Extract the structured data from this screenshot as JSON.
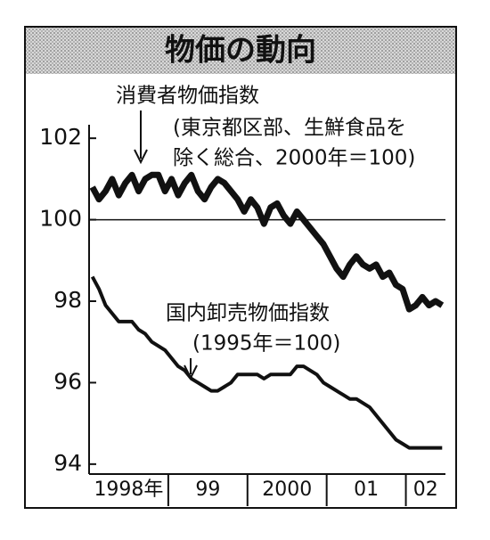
{
  "chart_data": {
    "type": "line",
    "title": "物価の動向",
    "categories": [
      "1998年",
      null,
      null,
      null,
      null,
      null,
      null,
      null,
      null,
      null,
      null,
      null,
      "99",
      null,
      null,
      null,
      null,
      null,
      null,
      null,
      null,
      null,
      null,
      null,
      "2000",
      null,
      null,
      null,
      null,
      null,
      null,
      null,
      null,
      null,
      null,
      null,
      "01",
      null,
      null,
      null,
      null,
      null,
      null,
      null,
      null,
      null,
      null,
      null,
      "02",
      null,
      null,
      null,
      null,
      null
    ],
    "series": [
      {
        "name": "消費者物価指数",
        "color": "#111111",
        "values": [
          100.8,
          100.5,
          100.7,
          101.0,
          100.6,
          100.9,
          101.1,
          100.7,
          101.0,
          101.1,
          101.1,
          100.7,
          101.0,
          100.6,
          100.9,
          101.1,
          100.7,
          100.5,
          100.8,
          101.0,
          100.9,
          100.7,
          100.5,
          100.2,
          100.5,
          100.3,
          99.9,
          100.3,
          100.4,
          100.1,
          99.9,
          100.2,
          100.0,
          99.8,
          99.6,
          99.4,
          99.1,
          98.8,
          98.6,
          98.9,
          99.1,
          98.9,
          98.8,
          98.9,
          98.6,
          98.7,
          98.4,
          98.3,
          97.8,
          97.9,
          98.1,
          97.9,
          98.0,
          97.9
        ]
      },
      {
        "name": "国内卸売物価指数",
        "color": "#111111",
        "values": [
          98.6,
          98.3,
          97.9,
          97.7,
          97.5,
          97.5,
          97.5,
          97.3,
          97.2,
          97.0,
          96.9,
          96.8,
          96.6,
          96.4,
          96.3,
          96.1,
          96.0,
          95.9,
          95.8,
          95.8,
          95.9,
          96.0,
          96.2,
          96.2,
          96.2,
          96.2,
          96.1,
          96.2,
          96.2,
          96.2,
          96.2,
          96.4,
          96.4,
          96.3,
          96.2,
          96.0,
          95.9,
          95.8,
          95.7,
          95.6,
          95.6,
          95.5,
          95.4,
          95.2,
          95.0,
          94.8,
          94.6,
          94.5,
          94.4,
          94.4,
          94.4,
          94.4,
          94.4,
          94.4
        ]
      }
    ],
    "annotations": [
      "(東京都区部、生鮮食品を",
      "除く総合、2000年＝100)",
      "(1995年＝100)"
    ],
    "ylim": [
      93.8,
      102.2
    ],
    "yticks": [
      94,
      96,
      98,
      100,
      102
    ],
    "hline": 100
  }
}
